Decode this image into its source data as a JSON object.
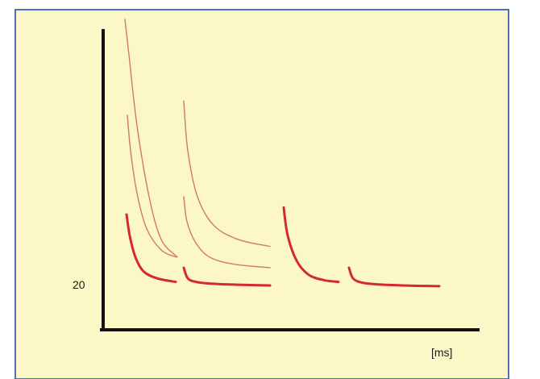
{
  "chart_data": {
    "type": "line",
    "title": "",
    "xlabel": "[ms]",
    "ylabel": "",
    "yticks": [
      "20"
    ],
    "grid": false,
    "legend": "none",
    "colors": {
      "background": "#fbf7c6",
      "border": "#4a72b8",
      "axis": "#111111"
    },
    "series": [
      {
        "group": "upper",
        "color": "#d07a6a",
        "width": 1.4,
        "segments": [
          {
            "x": [
              155,
              160,
              170,
              185,
              200,
              220
            ],
            "y": [
              95,
              85,
              65,
              45,
              33,
              28
            ]
          },
          {
            "x": [
              228,
              233,
              245,
              265,
              295,
              335
            ],
            "y": [
              72,
              58,
              45,
              37,
              33,
              31
            ]
          }
        ]
      },
      {
        "group": "middle",
        "color": "#d07a6a",
        "width": 1.4,
        "segments": [
          {
            "x": [
              158,
              162,
              170,
              182,
              200,
              218
            ],
            "y": [
              68,
              58,
              46,
              36,
              30,
              28
            ]
          },
          {
            "x": [
              228,
              232,
              243,
              260,
              290,
              335
            ],
            "y": [
              45,
              38,
              32,
              28,
              26,
              25
            ]
          }
        ]
      },
      {
        "group": "lower",
        "color": "#d42a2a",
        "width": 3,
        "segments": [
          {
            "x": [
              157,
              161,
              168,
              178,
              195,
              218
            ],
            "y": [
              40,
              34,
              28,
              24,
              22,
              21
            ]
          },
          {
            "x": [
              228,
              233,
              243,
              262,
              295,
              335
            ],
            "y": [
              25,
              22,
              21,
              20.5,
              20.2,
              20
            ]
          },
          {
            "x": [
              352,
              357,
              368,
              383,
              402,
              420
            ],
            "y": [
              42,
              34,
              27,
              23,
              21.5,
              21
            ]
          },
          {
            "x": [
              433,
              438,
              449,
              468,
              500,
              545
            ],
            "y": [
              25,
              22,
              20.8,
              20.3,
              20,
              19.8
            ]
          }
        ]
      }
    ]
  }
}
